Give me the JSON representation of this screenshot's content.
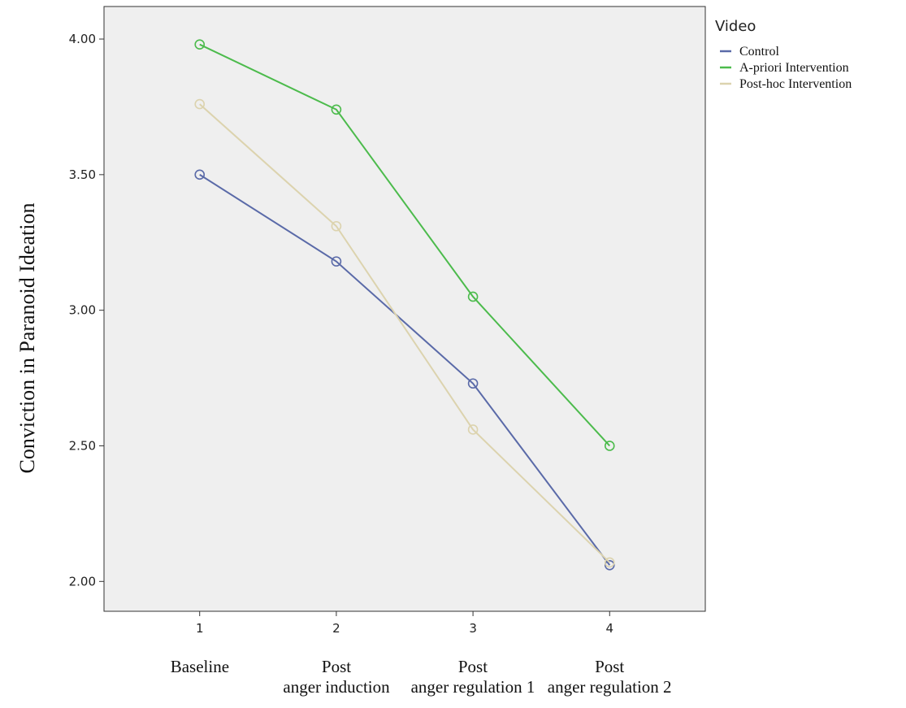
{
  "chart_data": {
    "type": "line",
    "ylabel": "Conviction in Paranoid Ideation",
    "xlabel": "",
    "x": [
      1,
      2,
      3,
      4
    ],
    "x_tick_labels": [
      "1",
      "2",
      "3",
      "4"
    ],
    "phase_labels": [
      {
        "line1": "Baseline",
        "line2": ""
      },
      {
        "line1": "Post",
        "line2": "anger induction"
      },
      {
        "line1": "Post",
        "line2": "anger regulation 1"
      },
      {
        "line1": "Post",
        "line2": "anger regulation 2"
      }
    ],
    "xlim": [
      0.3,
      4.7
    ],
    "ylim": [
      1.89,
      4.12
    ],
    "y_ticks": [
      2.0,
      2.5,
      3.0,
      3.5,
      4.0
    ],
    "y_tick_labels": [
      "2.00",
      "2.50",
      "3.00",
      "3.50",
      "4.00"
    ],
    "legend": {
      "title": "Video",
      "position": "right"
    },
    "grid": false,
    "series": [
      {
        "name": "Control",
        "color": "#5a6aa8",
        "values": [
          3.5,
          3.18,
          2.73,
          2.06
        ]
      },
      {
        "name": "A-priori Intervention",
        "color": "#4cbb4c",
        "values": [
          3.98,
          3.74,
          3.05,
          2.5
        ]
      },
      {
        "name": "Post-hoc Intervention",
        "color": "#dcd3ae",
        "values": [
          3.76,
          3.31,
          2.56,
          2.07
        ]
      }
    ],
    "plot_background": "#efefef"
  }
}
